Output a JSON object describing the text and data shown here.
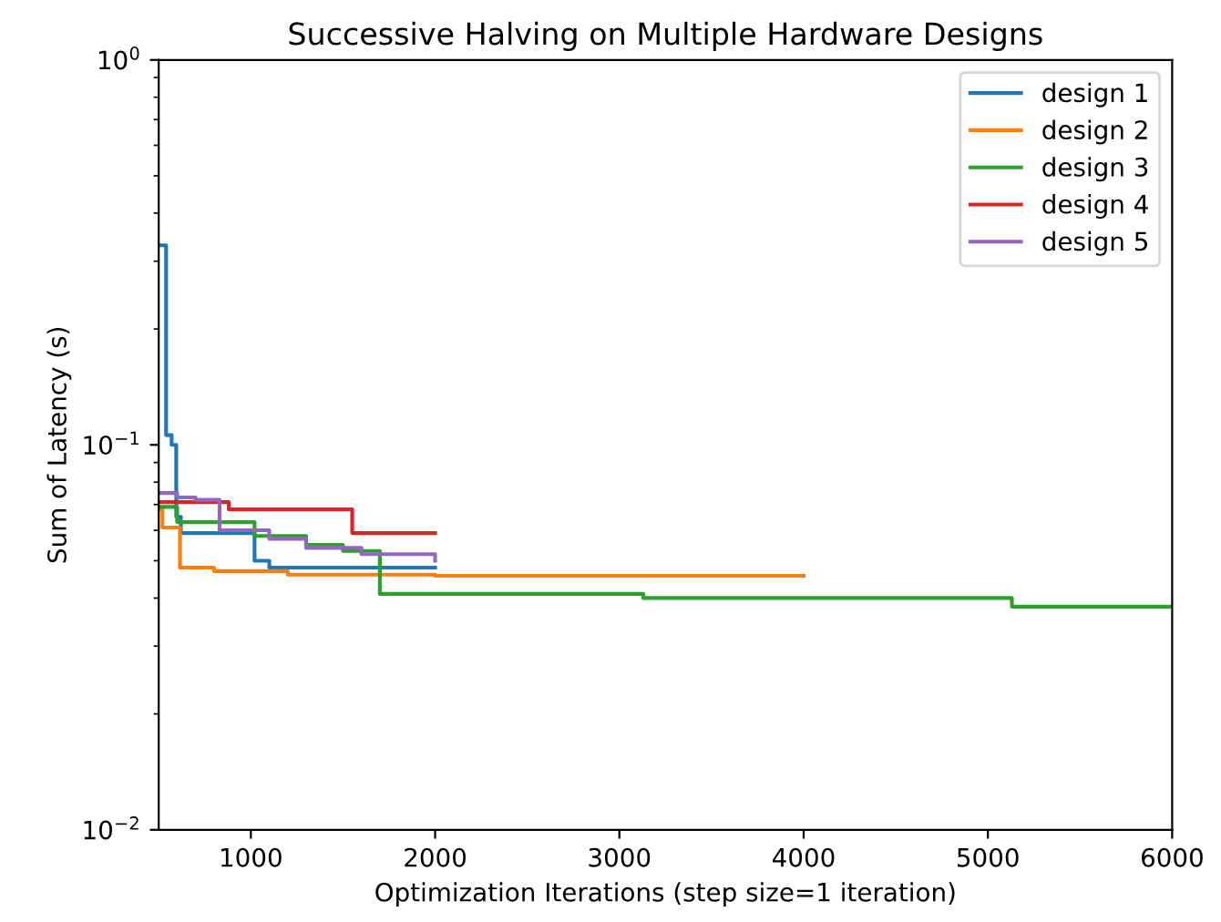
{
  "chart_data": {
    "type": "step",
    "title": "Successive Halving on Multiple Hardware Designs",
    "xlabel": "Optimization Iterations (step size=1 iteration)",
    "ylabel": "Sum of Latency (s)",
    "log": "y",
    "xlim": [
      500,
      6000
    ],
    "ylim": [
      0.01,
      1
    ],
    "xticks": [
      1000,
      2000,
      3000,
      4000,
      5000,
      6000
    ],
    "yticks": [
      {
        "value": 0.01,
        "label": "10$^{−2}$"
      },
      {
        "value": 0.1,
        "label": "10$^{−1}$"
      },
      {
        "value": 1,
        "label": "10$^{0}$"
      }
    ],
    "legend": "top right",
    "grid": false,
    "series": [
      {
        "name": "design 1",
        "color": "#1f77b4",
        "x": [
          500,
          540,
          570,
          595,
          620,
          1020,
          1100,
          2000
        ],
        "values": [
          0.33,
          0.106,
          0.1,
          0.065,
          0.059,
          0.05,
          0.048,
          0.048
        ]
      },
      {
        "name": "design 2",
        "color": "#ff7f0e",
        "x": [
          500,
          520,
          615,
          800,
          1200,
          2000,
          4000
        ],
        "values": [
          0.068,
          0.061,
          0.048,
          0.047,
          0.046,
          0.0457,
          0.0457
        ]
      },
      {
        "name": "design 3",
        "color": "#2ca02c",
        "x": [
          500,
          600,
          1020,
          1300,
          1500,
          1700,
          3130,
          5130,
          6000
        ],
        "values": [
          0.069,
          0.063,
          0.058,
          0.055,
          0.053,
          0.041,
          0.04,
          0.038,
          0.038
        ]
      },
      {
        "name": "design 4",
        "color": "#d62728",
        "x": [
          500,
          880,
          1550,
          2000
        ],
        "values": [
          0.071,
          0.068,
          0.059,
          0.059
        ]
      },
      {
        "name": "design 5",
        "color": "#9467bd",
        "x": [
          500,
          600,
          700,
          830,
          1100,
          1300,
          1600,
          2000
        ],
        "values": [
          0.075,
          0.073,
          0.072,
          0.06,
          0.057,
          0.054,
          0.052,
          0.05
        ]
      }
    ]
  }
}
